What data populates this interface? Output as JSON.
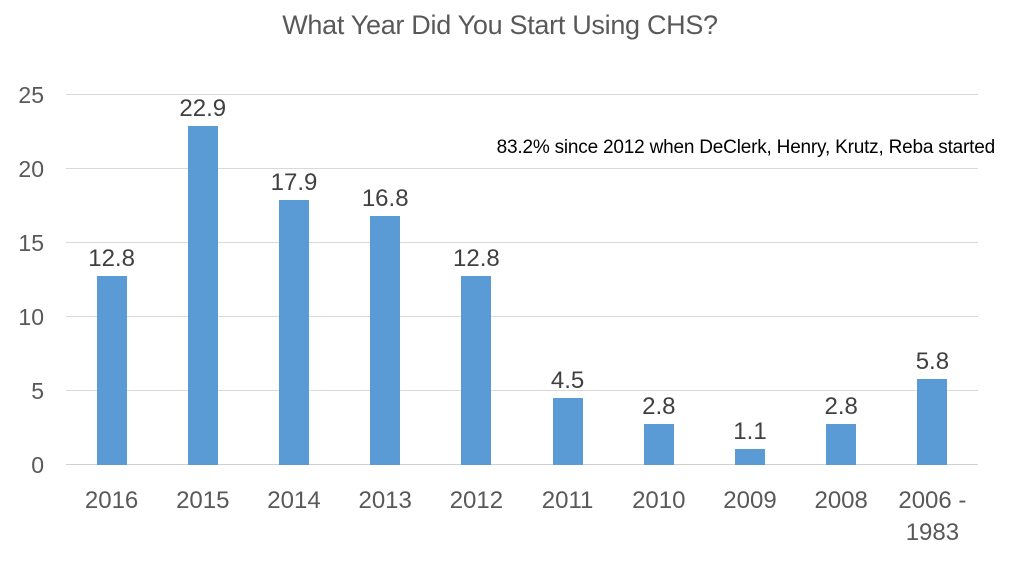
{
  "chart_data": {
    "type": "bar",
    "title": "What Year Did You Start Using CHS?",
    "annotation": "83.2% since 2012 when DeClerk, Henry, Krutz, Reba started",
    "categories": [
      "2016",
      "2015",
      "2014",
      "2013",
      "2012",
      "2011",
      "2010",
      "2009",
      "2008",
      "2006 -\n1983"
    ],
    "values": [
      12.8,
      22.9,
      17.9,
      16.8,
      12.8,
      4.5,
      2.8,
      1.1,
      2.8,
      5.8
    ],
    "xlabel": "",
    "ylabel": "",
    "ylim": [
      0,
      25
    ],
    "y_ticks": [
      0,
      5,
      10,
      15,
      20,
      25
    ],
    "grid": true,
    "legend_position": "none",
    "value_labels": true,
    "bar_color": "#5B9BD5",
    "title_color": "#595959",
    "axis_label_color": "#595959",
    "value_label_color": "#404040",
    "annotation_color": "#000000",
    "gridline_color": "#D9D9D9"
  }
}
